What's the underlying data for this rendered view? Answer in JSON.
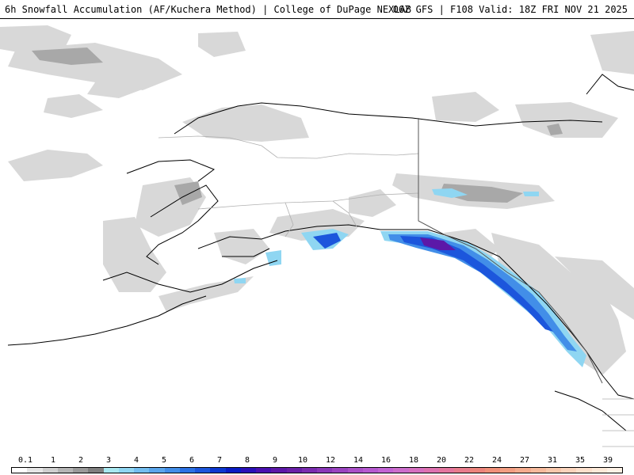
{
  "header": {
    "title_left": "6h Snowfall Accumulation (AF/Kuchera Method) | College of DuPage NEXLAB",
    "title_right": "06Z GFS | F108 Valid: 18Z FRI NOV 21 2025"
  },
  "legend": {
    "labels": [
      "0.1",
      "1",
      "2",
      "3",
      "4",
      "5",
      "6",
      "7",
      "8",
      "9",
      "10",
      "12",
      "14",
      "16",
      "18",
      "20",
      "22",
      "24",
      "27",
      "31",
      "35",
      "39"
    ],
    "colors": [
      "#ffffff",
      "#e6e6e6",
      "#cfcfcf",
      "#b5b5b5",
      "#9a9a9a",
      "#7f7f7f",
      "#a8e8f0",
      "#8fd6f2",
      "#73bef0",
      "#5aa6ec",
      "#428ee8",
      "#2c72e4",
      "#1c56dc",
      "#0c38d0",
      "#0a1cc4",
      "#2a10b8",
      "#4a10b0",
      "#5c18a8",
      "#6a20a8",
      "#7a2cb0",
      "#8a38b8",
      "#9a44c0",
      "#aa50c8",
      "#b65ad0",
      "#c264d4",
      "#cc6ecc",
      "#d670c0",
      "#de72b0",
      "#e4769e",
      "#e87c8c",
      "#ec847c",
      "#f0907a",
      "#f29e82",
      "#f4ac8e",
      "#f6ba9c",
      "#f8c8ac",
      "#fad4bc",
      "#fce0cc",
      "#fdead9",
      "#fef2e6"
    ]
  }
}
